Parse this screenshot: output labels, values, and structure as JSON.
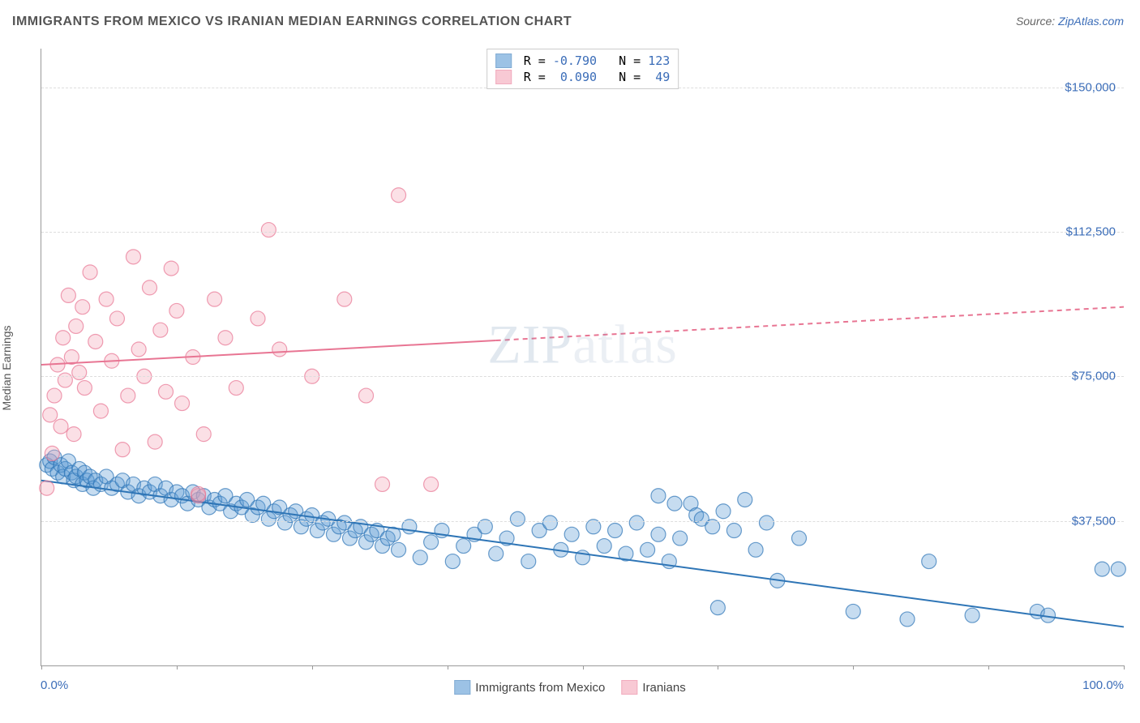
{
  "title": "IMMIGRANTS FROM MEXICO VS IRANIAN MEDIAN EARNINGS CORRELATION CHART",
  "source_prefix": "Source: ",
  "source_link": "ZipAtlas.com",
  "ylabel": "Median Earnings",
  "watermark_bold": "ZIP",
  "watermark_thin": "atlas",
  "chart": {
    "type": "scatter-with-regression",
    "xlim": [
      0,
      100
    ],
    "ylim": [
      0,
      160000
    ],
    "x_tick_left": "0.0%",
    "x_tick_right": "100.0%",
    "x_tickmarks": [
      0,
      12.5,
      25,
      37.5,
      50,
      62.5,
      75,
      87.5,
      100
    ],
    "y_gridlines": [
      37500,
      75000,
      112500,
      150000
    ],
    "y_tick_labels": [
      "$37,500",
      "$75,000",
      "$112,500",
      "$150,000"
    ],
    "y_tick_values": [
      37500,
      75000,
      112500,
      150000
    ],
    "background_color": "#ffffff",
    "grid_color": "#dddddd",
    "marker_radius": 9,
    "marker_fill_opacity": 0.35,
    "marker_stroke_opacity": 0.7,
    "line_width": 2
  },
  "series": [
    {
      "name": "Immigrants from Mexico",
      "color": "#5b9bd5",
      "stroke": "#2e75b6",
      "line_color": "#2e75b6",
      "R": "-0.790",
      "N": "123",
      "regression": {
        "x1": 0,
        "y1": 48000,
        "x2": 100,
        "y2": 10000,
        "dashed_from_x": null
      },
      "points": [
        [
          0.5,
          52000
        ],
        [
          0.8,
          53000
        ],
        [
          1.0,
          51000
        ],
        [
          1.2,
          54000
        ],
        [
          1.5,
          50000
        ],
        [
          1.8,
          52000
        ],
        [
          2.0,
          49000
        ],
        [
          2.2,
          51000
        ],
        [
          2.5,
          53000
        ],
        [
          2.8,
          50000
        ],
        [
          3.0,
          48000
        ],
        [
          3.2,
          49000
        ],
        [
          3.5,
          51000
        ],
        [
          3.8,
          47000
        ],
        [
          4.0,
          50000
        ],
        [
          4.2,
          48000
        ],
        [
          4.5,
          49000
        ],
        [
          4.8,
          46000
        ],
        [
          5.0,
          48000
        ],
        [
          5.5,
          47000
        ],
        [
          6.0,
          49000
        ],
        [
          6.5,
          46000
        ],
        [
          7.0,
          47000
        ],
        [
          7.5,
          48000
        ],
        [
          8.0,
          45000
        ],
        [
          8.5,
          47000
        ],
        [
          9.0,
          44000
        ],
        [
          9.5,
          46000
        ],
        [
          10.0,
          45000
        ],
        [
          10.5,
          47000
        ],
        [
          11.0,
          44000
        ],
        [
          11.5,
          46000
        ],
        [
          12.0,
          43000
        ],
        [
          12.5,
          45000
        ],
        [
          13.0,
          44000
        ],
        [
          13.5,
          42000
        ],
        [
          14.0,
          45000
        ],
        [
          14.5,
          43000
        ],
        [
          15.0,
          44000
        ],
        [
          15.5,
          41000
        ],
        [
          16.0,
          43000
        ],
        [
          16.5,
          42000
        ],
        [
          17.0,
          44000
        ],
        [
          17.5,
          40000
        ],
        [
          18.0,
          42000
        ],
        [
          18.5,
          41000
        ],
        [
          19.0,
          43000
        ],
        [
          19.5,
          39000
        ],
        [
          20.0,
          41000
        ],
        [
          20.5,
          42000
        ],
        [
          21.0,
          38000
        ],
        [
          21.5,
          40000
        ],
        [
          22.0,
          41000
        ],
        [
          22.5,
          37000
        ],
        [
          23.0,
          39000
        ],
        [
          23.5,
          40000
        ],
        [
          24.0,
          36000
        ],
        [
          24.5,
          38000
        ],
        [
          25.0,
          39000
        ],
        [
          25.5,
          35000
        ],
        [
          26.0,
          37000
        ],
        [
          26.5,
          38000
        ],
        [
          27.0,
          34000
        ],
        [
          27.5,
          36000
        ],
        [
          28.0,
          37000
        ],
        [
          28.5,
          33000
        ],
        [
          29.0,
          35000
        ],
        [
          29.5,
          36000
        ],
        [
          30.0,
          32000
        ],
        [
          30.5,
          34000
        ],
        [
          31.0,
          35000
        ],
        [
          31.5,
          31000
        ],
        [
          32.0,
          33000
        ],
        [
          32.5,
          34000
        ],
        [
          33.0,
          30000
        ],
        [
          34.0,
          36000
        ],
        [
          35.0,
          28000
        ],
        [
          36.0,
          32000
        ],
        [
          37.0,
          35000
        ],
        [
          38.0,
          27000
        ],
        [
          39.0,
          31000
        ],
        [
          40.0,
          34000
        ],
        [
          41.0,
          36000
        ],
        [
          42.0,
          29000
        ],
        [
          43.0,
          33000
        ],
        [
          44.0,
          38000
        ],
        [
          45.0,
          27000
        ],
        [
          46.0,
          35000
        ],
        [
          47.0,
          37000
        ],
        [
          48.0,
          30000
        ],
        [
          49.0,
          34000
        ],
        [
          50.0,
          28000
        ],
        [
          51.0,
          36000
        ],
        [
          52.0,
          31000
        ],
        [
          53.0,
          35000
        ],
        [
          54.0,
          29000
        ],
        [
          55.0,
          37000
        ],
        [
          56.0,
          30000
        ],
        [
          57.0,
          34000
        ],
        [
          58.0,
          27000
        ],
        [
          59.0,
          33000
        ],
        [
          60.0,
          42000
        ],
        [
          60.5,
          39000
        ],
        [
          61.0,
          38000
        ],
        [
          62.0,
          36000
        ],
        [
          63.0,
          40000
        ],
        [
          64.0,
          35000
        ],
        [
          65.0,
          43000
        ],
        [
          66.0,
          30000
        ],
        [
          67.0,
          37000
        ],
        [
          68.0,
          22000
        ],
        [
          62.5,
          15000
        ],
        [
          57.0,
          44000
        ],
        [
          58.5,
          42000
        ],
        [
          70.0,
          33000
        ],
        [
          75.0,
          14000
        ],
        [
          80.0,
          12000
        ],
        [
          82.0,
          27000
        ],
        [
          86.0,
          13000
        ],
        [
          92.0,
          14000
        ],
        [
          93.0,
          13000
        ],
        [
          98.0,
          25000
        ],
        [
          99.5,
          25000
        ]
      ]
    },
    {
      "name": "Iranians",
      "color": "#f4a6b8",
      "stroke": "#e87593",
      "line_color": "#e87593",
      "R": " 0.090",
      "N": " 49",
      "regression": {
        "x1": 0,
        "y1": 78000,
        "x2": 100,
        "y2": 93000,
        "dashed_from_x": 42
      },
      "points": [
        [
          0.5,
          46000
        ],
        [
          0.8,
          65000
        ],
        [
          1.0,
          55000
        ],
        [
          1.2,
          70000
        ],
        [
          1.5,
          78000
        ],
        [
          1.8,
          62000
        ],
        [
          2.0,
          85000
        ],
        [
          2.2,
          74000
        ],
        [
          2.5,
          96000
        ],
        [
          2.8,
          80000
        ],
        [
          3.0,
          60000
        ],
        [
          3.2,
          88000
        ],
        [
          3.5,
          76000
        ],
        [
          3.8,
          93000
        ],
        [
          4.0,
          72000
        ],
        [
          4.5,
          102000
        ],
        [
          5.0,
          84000
        ],
        [
          5.5,
          66000
        ],
        [
          6.0,
          95000
        ],
        [
          6.5,
          79000
        ],
        [
          7.0,
          90000
        ],
        [
          7.5,
          56000
        ],
        [
          8.0,
          70000
        ],
        [
          8.5,
          106000
        ],
        [
          9.0,
          82000
        ],
        [
          9.5,
          75000
        ],
        [
          10.0,
          98000
        ],
        [
          10.5,
          58000
        ],
        [
          11.0,
          87000
        ],
        [
          11.5,
          71000
        ],
        [
          12.0,
          103000
        ],
        [
          12.5,
          92000
        ],
        [
          13.0,
          68000
        ],
        [
          14.0,
          80000
        ],
        [
          15.0,
          60000
        ],
        [
          16.0,
          95000
        ],
        [
          14.5,
          44000
        ],
        [
          17.0,
          85000
        ],
        [
          18.0,
          72000
        ],
        [
          20.0,
          90000
        ],
        [
          21.0,
          113000
        ],
        [
          22.0,
          82000
        ],
        [
          25.0,
          75000
        ],
        [
          28.0,
          95000
        ],
        [
          30.0,
          70000
        ],
        [
          31.5,
          47000
        ],
        [
          33.0,
          122000
        ],
        [
          36.0,
          47000
        ],
        [
          14.5,
          44500
        ]
      ]
    }
  ],
  "bottom_legend": [
    {
      "label": "Immigrants from Mexico",
      "color": "#5b9bd5",
      "stroke": "#2e75b6"
    },
    {
      "label": "Iranians",
      "color": "#f4a6b8",
      "stroke": "#e87593"
    }
  ]
}
